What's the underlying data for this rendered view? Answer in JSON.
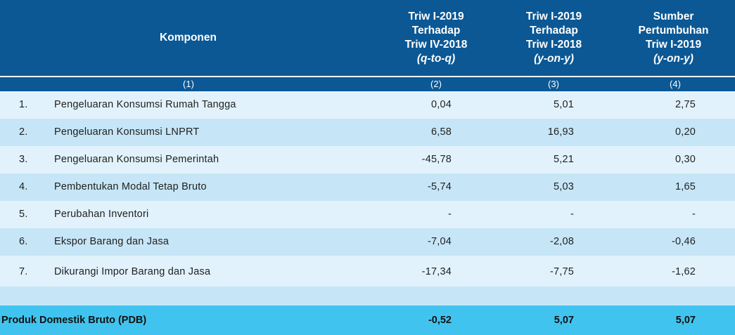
{
  "header": {
    "komponen": "Komponen",
    "col2": [
      "Triw I-2019",
      "Terhadap",
      "Triw IV-2018",
      "(q-to-q)"
    ],
    "col3": [
      "Triw I-2019",
      "Terhadap",
      "Triw I-2018",
      "(y-on-y)"
    ],
    "col4": [
      "Sumber",
      "Pertumbuhan",
      "Triw I-2019",
      "(y-on-y)"
    ]
  },
  "column_numbers": [
    "(1)",
    "(2)",
    "(3)",
    "(4)"
  ],
  "rows": [
    {
      "no": "1.",
      "label": "Pengeluaran Konsumsi Rumah Tangga",
      "qtoq": "0,04",
      "yony": "5,01",
      "sumber": "2,75"
    },
    {
      "no": "2.",
      "label": "Pengeluaran Konsumsi LNPRT",
      "qtoq": "6,58",
      "yony": "16,93",
      "sumber": "0,20"
    },
    {
      "no": "3.",
      "label": "Pengeluaran Konsumsi Pemerintah",
      "qtoq": "-45,78",
      "yony": "5,21",
      "sumber": "0,30"
    },
    {
      "no": "4.",
      "label": "Pembentukan Modal Tetap Bruto",
      "qtoq": "-5,74",
      "yony": "5,03",
      "sumber": "1,65"
    },
    {
      "no": "5.",
      "label": "Perubahan Inventori",
      "qtoq": "-",
      "yony": "-",
      "sumber": "-"
    },
    {
      "no": "6.",
      "label": "Ekspor Barang dan Jasa",
      "qtoq": "-7,04",
      "yony": "-2,08",
      "sumber": "-0,46"
    },
    {
      "no": "7.",
      "label": "Dikurangi Impor Barang dan Jasa",
      "qtoq": "-17,34",
      "yony": "-7,75",
      "sumber": "-1,62"
    }
  ],
  "total": {
    "label": "Produk Domestik Bruto (PDB)",
    "qtoq": "-0,52",
    "yony": "5,07",
    "sumber": "5,07"
  },
  "colors": {
    "header_bg": "#0b5895",
    "row_light": "#e2f2fc",
    "row_mid": "#c6e6f7",
    "total_bg": "#40c4ef"
  }
}
